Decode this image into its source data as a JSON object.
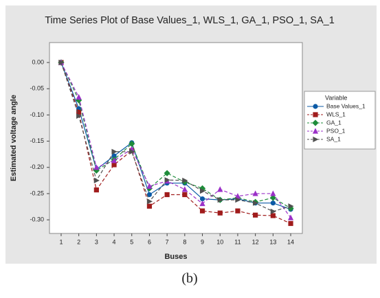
{
  "chart_data": {
    "type": "line",
    "title": "Time Series Plot of Base Values_1, WLS_1, GA_1, PSO_1, SA_1",
    "x_label": "Buses",
    "y_label": "Estimated voltage angle",
    "legend_title": "Variable",
    "caption": "(b)",
    "x": [
      1,
      2,
      3,
      4,
      5,
      6,
      7,
      8,
      9,
      10,
      11,
      12,
      13,
      14
    ],
    "xlim": [
      0.34,
      14.66
    ],
    "xticks": [
      1,
      2,
      3,
      4,
      5,
      6,
      7,
      8,
      9,
      10,
      11,
      12,
      13,
      14
    ],
    "ylim": [
      -0.326,
      0.038
    ],
    "yticks": [
      {
        "value": 0,
        "label": "0.00"
      },
      {
        "value": -0.05,
        "label": "-0.05"
      },
      {
        "value": -0.1,
        "label": "-0.10"
      },
      {
        "value": -0.15,
        "label": "-0.15"
      },
      {
        "value": -0.2,
        "label": "-0.20"
      },
      {
        "value": -0.25,
        "label": "-0.25"
      },
      {
        "value": -0.3,
        "label": "-0.30"
      }
    ],
    "series": [
      {
        "name": "Base Values_1",
        "color": "#0b5aa6",
        "marker": "circle",
        "line_style": "solid",
        "values": [
          0,
          -0.088,
          -0.204,
          -0.178,
          -0.153,
          -0.252,
          -0.23,
          -0.23,
          -0.26,
          -0.262,
          -0.26,
          -0.268,
          -0.268,
          -0.28
        ]
      },
      {
        "name": "WLS_1",
        "color": "#a01c1c",
        "marker": "square",
        "line_style": "dashed",
        "values": [
          0,
          -0.095,
          -0.243,
          -0.195,
          -0.168,
          -0.274,
          -0.252,
          -0.252,
          -0.283,
          -0.287,
          -0.283,
          -0.291,
          -0.292,
          -0.307
        ]
      },
      {
        "name": "GA_1",
        "color": "#1e8c3a",
        "marker": "diamond",
        "line_style": "dashed",
        "values": [
          0,
          -0.072,
          -0.206,
          -0.185,
          -0.155,
          -0.24,
          -0.211,
          -0.228,
          -0.24,
          -0.262,
          -0.258,
          -0.266,
          -0.258,
          -0.278
        ]
      },
      {
        "name": "PSO_1",
        "color": "#9b30c8",
        "marker": "triangle-up",
        "line_style": "dashed",
        "values": [
          0,
          -0.066,
          -0.2,
          -0.187,
          -0.165,
          -0.236,
          -0.226,
          -0.242,
          -0.269,
          -0.242,
          -0.255,
          -0.25,
          -0.25,
          -0.296
        ]
      },
      {
        "name": "SA_1",
        "color": "#505050",
        "marker": "triangle-right",
        "line_style": "dashed",
        "values": [
          0,
          -0.102,
          -0.225,
          -0.17,
          -0.17,
          -0.265,
          -0.224,
          -0.225,
          -0.245,
          -0.262,
          -0.262,
          -0.268,
          -0.284,
          -0.274
        ]
      }
    ]
  }
}
